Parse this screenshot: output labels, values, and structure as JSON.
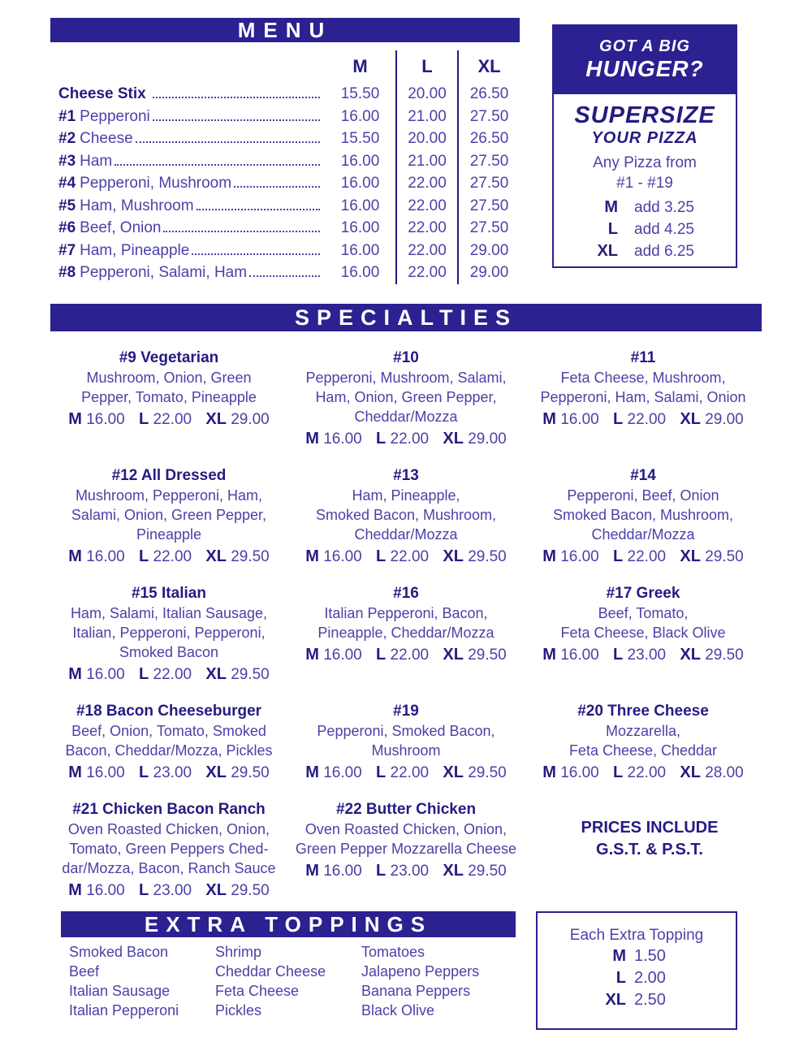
{
  "colors": {
    "banner": "#2b2191",
    "dark_text": "#241b82",
    "body_text": "#4a42a8"
  },
  "sizes": {
    "m": "M",
    "l": "L",
    "xl": "XL"
  },
  "menu": {
    "title": "MENU",
    "columns": [
      "M",
      "L",
      "XL"
    ],
    "items": [
      {
        "name": "Cheese Stix",
        "desc": "",
        "m": "15.50",
        "l": "20.00",
        "xl": "26.50"
      },
      {
        "name": "#1",
        "desc": "Pepperoni",
        "m": "16.00",
        "l": "21.00",
        "xl": "27.50"
      },
      {
        "name": "#2",
        "desc": "Cheese",
        "m": "15.50",
        "l": "20.00",
        "xl": "26.50"
      },
      {
        "name": "#3",
        "desc": "Ham",
        "m": "16.00",
        "l": "21.00",
        "xl": "27.50"
      },
      {
        "name": "#4",
        "desc": "Pepperoni, Mushroom",
        "m": "16.00",
        "l": "22.00",
        "xl": "27.50"
      },
      {
        "name": "#5",
        "desc": "Ham, Mushroom",
        "m": "16.00",
        "l": "22.00",
        "xl": "27.50"
      },
      {
        "name": "#6",
        "desc": "Beef, Onion",
        "m": "16.00",
        "l": "22.00",
        "xl": "27.50"
      },
      {
        "name": "#7",
        "desc": "Ham, Pineapple",
        "m": "16.00",
        "l": "22.00",
        "xl": "29.00"
      },
      {
        "name": "#8",
        "desc": "Pepperoni, Salami, Ham",
        "m": "16.00",
        "l": "22.00",
        "xl": "29.00"
      }
    ]
  },
  "supersize": {
    "header_line1": "GOT A BIG",
    "header_line2": "HUNGER?",
    "title_line1": "SUPERSIZE",
    "title_line2": "YOUR PIZZA",
    "note_line1": "Any Pizza from",
    "note_line2": "#1 - #19",
    "rows": [
      {
        "size": "M",
        "amount": "add 3.25"
      },
      {
        "size": "L",
        "amount": "add 4.25"
      },
      {
        "size": "XL",
        "amount": "add 6.25"
      }
    ]
  },
  "specialties": {
    "title": "SPECIALTIES",
    "items": [
      {
        "name": "#9 Vegetarian",
        "lines": [
          "Mushroom, Onion, Green",
          "Pepper, Tomato, Pineapple"
        ],
        "m": "16.00",
        "l": "22.00",
        "xl": "29.00"
      },
      {
        "name": "#10",
        "lines": [
          "Pepperoni, Mushroom, Salami,",
          "Ham, Onion, Green Pepper,",
          "Cheddar/Mozza"
        ],
        "m": "16.00",
        "l": "22.00",
        "xl": "29.00"
      },
      {
        "name": "#11",
        "lines": [
          "Feta Cheese, Mushroom,",
          "Pepperoni, Ham, Salami, Onion"
        ],
        "m": "16.00",
        "l": "22.00",
        "xl": "29.00"
      },
      {
        "name": "#12 All Dressed",
        "lines": [
          "Mushroom, Pepperoni, Ham,",
          "Salami, Onion, Green Pepper,",
          "Pineapple"
        ],
        "m": "16.00",
        "l": "22.00",
        "xl": "29.50"
      },
      {
        "name": "#13",
        "lines": [
          "Ham, Pineapple,",
          "Smoked Bacon, Mushroom,",
          "Cheddar/Mozza"
        ],
        "m": "16.00",
        "l": "22.00",
        "xl": "29.50"
      },
      {
        "name": "#14",
        "lines": [
          "Pepperoni, Beef, Onion",
          "Smoked Bacon, Mushroom,",
          "Cheddar/Mozza"
        ],
        "m": "16.00",
        "l": "22.00",
        "xl": "29.50"
      },
      {
        "name": "#15 Italian",
        "lines": [
          "Ham, Salami, Italian Sausage,",
          "Italian, Pepperoni, Pepperoni,",
          "Smoked Bacon"
        ],
        "m": "16.00",
        "l": "22.00",
        "xl": "29.50"
      },
      {
        "name": "#16",
        "lines": [
          "Italian Pepperoni, Bacon,",
          "Pineapple, Cheddar/Mozza"
        ],
        "m": "16.00",
        "l": "22.00",
        "xl": "29.50"
      },
      {
        "name": "#17 Greek",
        "lines": [
          "Beef, Tomato,",
          "Feta Cheese, Black Olive"
        ],
        "m": "16.00",
        "l": "23.00",
        "xl": "29.50"
      },
      {
        "name": "#18 Bacon Cheeseburger",
        "lines": [
          "Beef, Onion, Tomato, Smoked",
          "Bacon, Cheddar/Mozza, Pickles"
        ],
        "m": "16.00",
        "l": "23.00",
        "xl": "29.50"
      },
      {
        "name": "#19",
        "lines": [
          "Pepperoni, Smoked Bacon,",
          "Mushroom"
        ],
        "m": "16.00",
        "l": "22.00",
        "xl": "29.50"
      },
      {
        "name": "#20 Three Cheese",
        "lines": [
          "Mozzarella,",
          "Feta Cheese, Cheddar"
        ],
        "m": "16.00",
        "l": "22.00",
        "xl": "28.00"
      },
      {
        "name": "#21 Chicken Bacon Ranch",
        "lines": [
          "Oven Roasted Chicken, Onion,",
          "Tomato, Green Peppers Ched-",
          "dar/Mozza, Bacon, Ranch Sauce"
        ],
        "m": "16.00",
        "l": "23.00",
        "xl": "29.50"
      },
      {
        "name": "#22 Butter Chicken",
        "lines": [
          "Oven Roasted Chicken, Onion,",
          "Green Pepper Mozzarella Cheese"
        ],
        "m": "16.00",
        "l": "23.00",
        "xl": "29.50"
      }
    ]
  },
  "tax_note": {
    "line1": "PRICES INCLUDE",
    "line2": "G.S.T. & P.S.T."
  },
  "extra_toppings": {
    "title": "EXTRA TOPPINGS",
    "columns": [
      [
        "Smoked Bacon",
        "Beef",
        "Italian Sausage",
        "Italian Pepperoni"
      ],
      [
        "Shrimp",
        "Cheddar Cheese",
        "Feta Cheese",
        "Pickles"
      ],
      [
        "Tomatoes",
        "Jalapeno Peppers",
        "Banana Peppers",
        "Black Olive"
      ]
    ],
    "price_box": {
      "title": "Each Extra Topping",
      "rows": [
        {
          "size": "M",
          "price": "1.50"
        },
        {
          "size": "L",
          "price": "2.00"
        },
        {
          "size": "XL",
          "price": "2.50"
        }
      ]
    }
  }
}
